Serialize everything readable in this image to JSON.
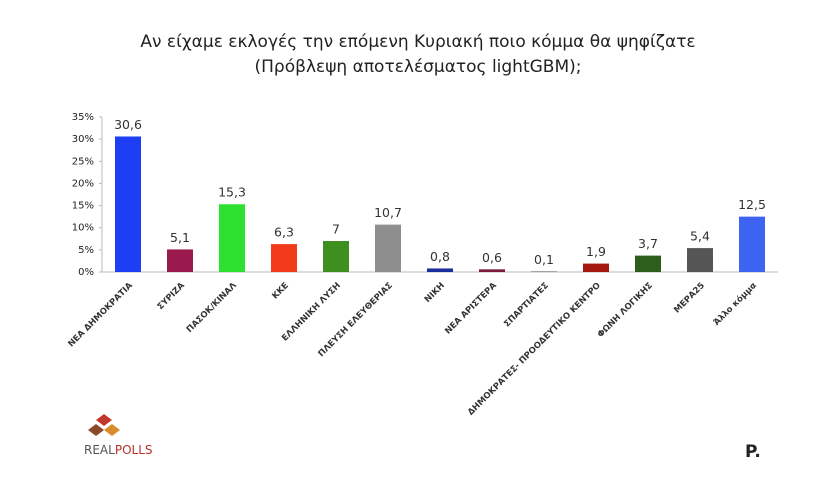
{
  "chart_data": {
    "type": "bar",
    "title": "Αν είχαμε εκλογές την επόμενη Κυριακή ποιο κόμμα θα ψηφίζατε",
    "subtitle": "(Πρόβλεψη αποτελέσματος lightGBM);",
    "categories": [
      "ΝΕΑ ΔΗΜΟΚΡΑΤΙΑ",
      "ΣΥΡΙΖΑ",
      "ΠΑΣΟΚ/ΚΙΝΑΛ",
      "ΚΚΕ",
      "ΕΛΛΗΝΙΚΗ ΛΥΣΗ",
      "ΠΛΕΥΣΗ ΕΛΕΥΘΕΡΙΑΣ",
      "ΝΙΚΗ",
      "ΝΕΑ ΑΡΙΣΤΕΡΑ",
      "ΣΠΑΡΤΙΑΤΕΣ",
      "ΔΗΜΟΚΡΑΤΕΣ- ΠΡΟΟΔΕΥΤΙΚΟ ΚΕΝΤΡΟ",
      "ΦΩΝΗ ΛΟΓΙΚΗΣ",
      "ΜΕΡΑ25",
      "Άλλο κόμμα"
    ],
    "values": [
      30.6,
      5.1,
      15.3,
      6.3,
      7,
      10.7,
      0.8,
      0.6,
      0.1,
      1.9,
      3.7,
      5.4,
      12.5
    ],
    "value_labels": [
      "30,6",
      "5,1",
      "15,3",
      "6,3",
      "7",
      "10,7",
      "0,8",
      "0,6",
      "0,1",
      "1,9",
      "3,7",
      "5,4",
      "12,5"
    ],
    "colors": [
      "#1d3ef2",
      "#9a1a4e",
      "#2fe12f",
      "#f23b1b",
      "#3f8f1f",
      "#8e8e8e",
      "#1c2d9c",
      "#7a1a3a",
      "#3a3a3a",
      "#a3190f",
      "#2d5e1b",
      "#555555",
      "#3d63f2"
    ],
    "ylim": [
      0,
      35
    ],
    "yticks": [
      {
        "value": 0,
        "label": "0%"
      },
      {
        "value": 5,
        "label": "5%"
      },
      {
        "value": 10,
        "label": "10%"
      },
      {
        "value": 15,
        "label": "15%"
      },
      {
        "value": 20,
        "label": "20%"
      },
      {
        "value": 25,
        "label": "25%"
      },
      {
        "value": 30,
        "label": "30%"
      },
      {
        "value": 35,
        "label": "35%"
      }
    ],
    "grid": false
  },
  "branding": {
    "left": [
      "REAL",
      "POLLS"
    ],
    "right": "P."
  }
}
